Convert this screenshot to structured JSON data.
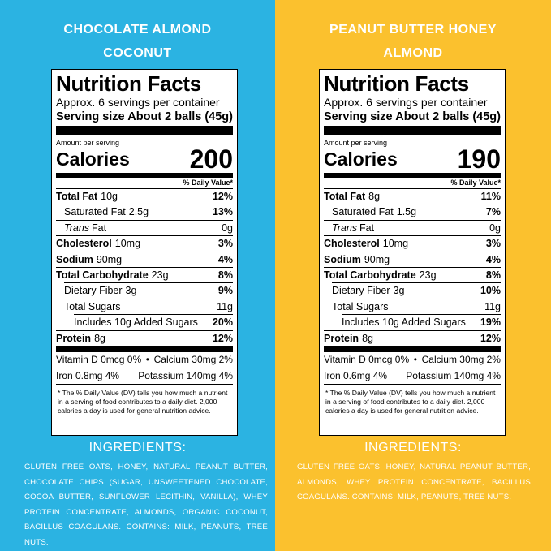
{
  "panels": [
    {
      "title_lines": [
        "CHOCOLATE ALMOND",
        "COCONUT"
      ],
      "label": {
        "heading": "Nutrition Facts",
        "servings": "Approx. 6 servings per container",
        "serving_size_label": "Serving size",
        "serving_size_value": "About 2 balls (45g)",
        "amount_per_serving": "Amount per serving",
        "calories_label": "Calories",
        "calories_value": 200,
        "dv_header": "% Daily Value*",
        "rows": [
          {
            "name": "Total Fat",
            "amount": "10g",
            "dv": "12%"
          },
          {
            "name": "Saturated Fat",
            "amount": "2.5g",
            "dv": "13%"
          },
          {
            "name_italic": "Trans",
            "name": "Fat",
            "amount": "0g"
          },
          {
            "name": "Cholesterol",
            "amount": "10mg",
            "dv": "3%"
          },
          {
            "name": "Sodium",
            "amount": "90mg",
            "dv": "4%"
          },
          {
            "name": "Total Carbohydrate",
            "amount": "23g",
            "dv": "8%"
          },
          {
            "name": "Dietary Fiber",
            "amount": "3g",
            "dv": "9%"
          },
          {
            "name": "Total Sugars",
            "amount": "11g"
          },
          {
            "name": "Includes 10g Added Sugars",
            "dv": "20%"
          },
          {
            "name": "Protein",
            "amount": "8g",
            "dv": "12%"
          }
        ],
        "minerals": [
          [
            "Vitamin D 0mcg 0%",
            "Calcium 30mg 2%"
          ],
          [
            "Iron 0.8mg 4%",
            "Potassium 140mg 4%"
          ]
        ],
        "footnote": "* The % Daily Value (DV) tells you how much a nutrient in a serving of food contributes to a daily diet. 2,000 calories a day is used for general nutrition advice."
      },
      "ingredients_heading": "INGREDIENTS:",
      "ingredients": "GLUTEN FREE OATS, HONEY, NATURAL PEANUT BUTTER, CHOCOLATE CHIPS (SUGAR, UNSWEETENED CHOCOLATE, COCOA BUTTER, SUNFLOWER LECITHIN, VANILLA), WHEY PROTEIN CONCENTRATE, ALMONDS, ORGANIC COCONUT, BACILLUS COAGULANS. CONTAINS: MILK, PEANUTS, TREE NUTS."
    },
    {
      "title_lines": [
        "PEANUT BUTTER HONEY",
        "ALMOND"
      ],
      "label": {
        "heading": "Nutrition Facts",
        "servings": "Approx. 6 servings per container",
        "serving_size_label": "Serving size",
        "serving_size_value": "About 2 balls (45g)",
        "amount_per_serving": "Amount per serving",
        "calories_label": "Calories",
        "calories_value": 190,
        "dv_header": "% Daily Value*",
        "rows": [
          {
            "name": "Total Fat",
            "amount": "8g",
            "dv": "11%"
          },
          {
            "name": "Saturated Fat",
            "amount": "1.5g",
            "dv": "7%"
          },
          {
            "name_italic": "Trans",
            "name": "Fat",
            "amount": "0g"
          },
          {
            "name": "Cholesterol",
            "amount": "10mg",
            "dv": "3%"
          },
          {
            "name": "Sodium",
            "amount": "90mg",
            "dv": "4%"
          },
          {
            "name": "Total Carbohydrate",
            "amount": "23g",
            "dv": "8%"
          },
          {
            "name": "Dietary Fiber",
            "amount": "3g",
            "dv": "10%"
          },
          {
            "name": "Total Sugars",
            "amount": "11g"
          },
          {
            "name": "Includes 10g Added Sugars",
            "dv": "19%"
          },
          {
            "name": "Protein",
            "amount": "8g",
            "dv": "12%"
          }
        ],
        "minerals": [
          [
            "Vitamin D 0mcg 0%",
            "Calcium 30mg 2%"
          ],
          [
            "Iron 0.6mg 4%",
            "Potassium 140mg 4%"
          ]
        ],
        "footnote": "* The % Daily Value (DV) tells you how much a nutrient in a serving of food contributes to a daily diet. 2,000 calories a day is used for general nutrition advice."
      },
      "ingredients_heading": "INGREDIENTS:",
      "ingredients": "GLUTEN FREE OATS, HONEY, NATURAL PEANUT BUTTER, ALMONDS, WHEY PROTEIN CONCENTRATE, BACILLUS COAGULANS. CONTAINS: MILK, PEANUTS, TREE NUTS."
    }
  ]
}
